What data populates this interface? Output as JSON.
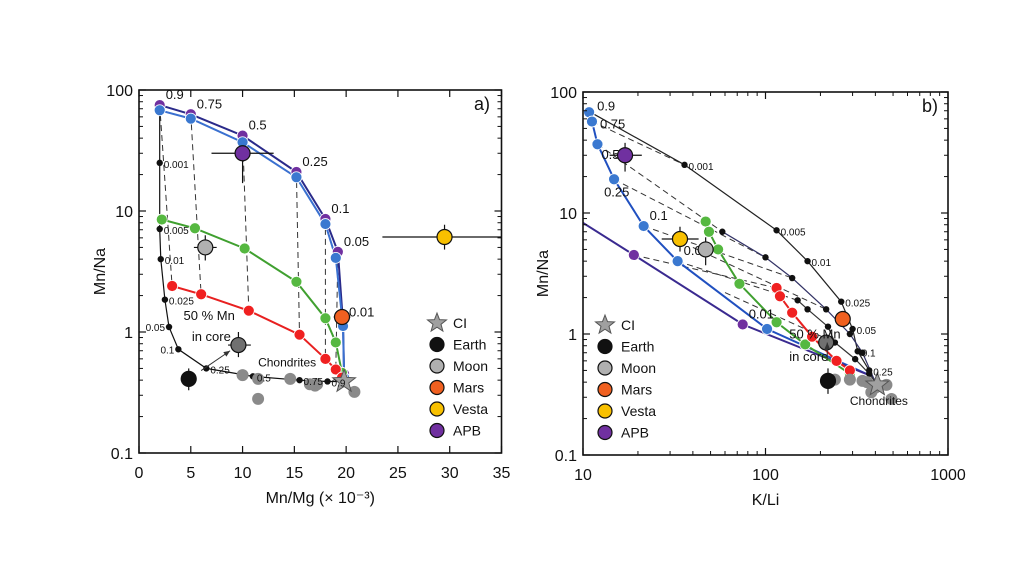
{
  "legend": [
    {
      "label": "CI",
      "marker": "star",
      "color": "#a0a0a0"
    },
    {
      "label": "Earth",
      "marker": "circle",
      "color": "#111111"
    },
    {
      "label": "Moon",
      "marker": "circle",
      "color": "#b0b0b0"
    },
    {
      "label": "Mars",
      "marker": "circle",
      "color": "#f06020"
    },
    {
      "label": "Vesta",
      "marker": "circle",
      "color": "#f8c000"
    },
    {
      "label": "APB",
      "marker": "circle",
      "color": "#7030a0"
    }
  ],
  "chart_data": [
    {
      "type": "scatter",
      "panel_label": "a)",
      "xlabel": "Mn/Mg (× 10⁻³)",
      "ylabel": "Mn/Na",
      "xscale": "linear",
      "yscale": "log",
      "xlim": [
        0,
        35
      ],
      "ylim": [
        0.1,
        100
      ],
      "xticks": [
        "0",
        "5",
        "10",
        "15",
        "20",
        "25",
        "30",
        "35"
      ],
      "yticks": [
        "0.1",
        "1",
        "10",
        "100"
      ],
      "grid": false,
      "legend_position": "bottom-right",
      "models": [
        {
          "color": "#2a2a8a",
          "marker": "#7030a0",
          "x": [
            2,
            5,
            10,
            15.2,
            18,
            19.2,
            19.7,
            19.8
          ],
          "y": [
            75,
            63,
            42,
            21,
            8.6,
            4.6,
            1.2,
            0.45
          ],
          "labels": [
            "0.9",
            "0.75",
            "0.5",
            "0.25",
            "0.1",
            "0.05",
            "0.01",
            null
          ],
          "big": true
        },
        {
          "color": "#3a70d0",
          "marker": "#3a78d0",
          "x": [
            2,
            5,
            10,
            15.2,
            18,
            19,
            19.7,
            19.8
          ],
          "y": [
            68,
            58,
            37,
            19,
            7.8,
            4.1,
            1.12,
            0.42
          ],
          "labels": [
            null,
            null,
            null,
            null,
            null,
            null,
            null,
            null
          ],
          "big": true
        },
        {
          "color": "#40a030",
          "marker": "#55b840",
          "x": [
            2.2,
            5.4,
            10.2,
            15.2,
            18,
            19,
            19.6
          ],
          "y": [
            8.5,
            7.2,
            4.9,
            2.6,
            1.3,
            0.82,
            0.46
          ],
          "labels": [],
          "big": true
        },
        {
          "color": "#e82020",
          "marker": "#f02020",
          "x": [
            3.2,
            6,
            10.6,
            15.5,
            18,
            19,
            19.6
          ],
          "y": [
            2.4,
            2.05,
            1.5,
            0.95,
            0.6,
            0.49,
            0.42
          ],
          "labels": [],
          "big": true
        },
        {
          "color": "#111111",
          "marker": "#111111",
          "x": [
            2,
            2,
            2,
            2.1,
            2.5,
            2.9,
            3.8,
            6.5,
            11,
            15.5,
            18.2,
            19.8
          ],
          "y": [
            70,
            25,
            7.1,
            4,
            1.85,
            1.1,
            0.72,
            0.5,
            0.43,
            0.4,
            0.39,
            0.39
          ],
          "labels": [
            null,
            "0.001",
            "0.005",
            "0.01",
            "0.025",
            "0.05",
            "0.1",
            "0.25",
            "0.5",
            "0.75",
            "0.9",
            null
          ],
          "big": false,
          "skip_marker": [
            0,
            11
          ]
        }
      ],
      "tie_lines": [
        {
          "x": [
            2,
            3.2
          ],
          "y": [
            75,
            2.4
          ]
        },
        {
          "x": [
            5,
            6
          ],
          "y": [
            63,
            2.05
          ]
        },
        {
          "x": [
            10,
            10.6
          ],
          "y": [
            42,
            1.5
          ]
        },
        {
          "x": [
            15.2,
            15.5
          ],
          "y": [
            21,
            0.95
          ]
        },
        {
          "x": [
            18,
            18
          ],
          "y": [
            8.6,
            0.6
          ]
        },
        {
          "x": [
            19.2,
            19
          ],
          "y": [
            4.6,
            0.49
          ]
        }
      ],
      "observations": [
        {
          "body": "Earth",
          "x": 4.8,
          "y": 0.41,
          "xerr": [
            4.8,
            4.8
          ],
          "yerr": [
            0.33,
            0.5
          ],
          "color": "#111111"
        },
        {
          "body": "Moon",
          "x": 6.4,
          "y": 5,
          "xerr": [
            5.3,
            7.5
          ],
          "yerr": [
            3.9,
            6.3
          ],
          "color": "#b0b0b0"
        },
        {
          "body": "Moon",
          "x": 9.6,
          "y": 0.78,
          "xerr": [
            8.6,
            10.8
          ],
          "yerr": [
            0.62,
            1.0
          ],
          "color": "#707070"
        },
        {
          "body": "Mars",
          "x": 19.6,
          "y": 1.33,
          "xerr": [
            18.8,
            20.4
          ],
          "yerr": [
            1.33,
            1.33
          ],
          "color": "#f06020"
        },
        {
          "body": "Vesta",
          "x": 29.5,
          "y": 6.1,
          "xerr": [
            23.5,
            35
          ],
          "yerr": [
            4.8,
            7.7
          ],
          "color": "#f8c000"
        },
        {
          "body": "APB",
          "x": 10,
          "y": 30,
          "xerr": [
            7,
            13
          ],
          "yerr": [
            17,
            30
          ],
          "color": "#7030a0"
        }
      ],
      "ci": {
        "x": 19.8,
        "y": 0.39
      },
      "chondrites": {
        "x": [
          10,
          11.5,
          11.5,
          14.6,
          16.5,
          17.2,
          17,
          20.8
        ],
        "y": [
          0.44,
          0.41,
          0.28,
          0.41,
          0.37,
          0.37,
          0.36,
          0.32
        ]
      },
      "annotations": {
        "core_line1": "50 % Mn",
        "core_line2": "in core",
        "chondrites": "Chondrites"
      }
    },
    {
      "type": "scatter",
      "panel_label": "b)",
      "xlabel": "K/Li",
      "ylabel": "Mn/Na",
      "xscale": "log",
      "yscale": "log",
      "xlim": [
        10,
        1000
      ],
      "ylim": [
        0.1,
        100
      ],
      "xticks": [
        "10",
        "100",
        "1000"
      ],
      "yticks": [
        "0.1",
        "1",
        "10",
        "100"
      ],
      "grid": false,
      "legend_position": "bottom-left",
      "models": [
        {
          "color": "#2050c0",
          "marker": "#3a78d0",
          "x": [
            10.8,
            11.2,
            12,
            14.8,
            21.5,
            33,
            102,
            380
          ],
          "y": [
            68,
            57,
            37,
            19,
            7.8,
            4,
            1.1,
            0.45
          ],
          "labels": [
            "0.9",
            "0.75",
            "0.5",
            "0.25",
            "0.1",
            "0.05",
            null,
            null
          ],
          "big": true,
          "skip_marker": [
            7
          ]
        },
        {
          "color": "#3a2a90",
          "marker": "#7030a0",
          "x": [
            10,
            19,
            75,
            380
          ],
          "y": [
            8.3,
            4.5,
            1.2,
            0.45
          ],
          "labels": [
            null,
            null,
            "0.01",
            null
          ],
          "big": true,
          "skip_marker": [
            0,
            3
          ]
        },
        {
          "color": "#40a030",
          "marker": "#55b840",
          "x": [
            47,
            49,
            55,
            72,
            115,
            165,
            290
          ],
          "y": [
            8.5,
            7,
            5,
            2.6,
            1.25,
            0.82,
            0.47
          ],
          "labels": [],
          "big": true
        },
        {
          "color": "#e82020",
          "marker": "#f02020",
          "x": [
            115,
            120,
            140,
            180,
            245,
            290
          ],
          "y": [
            2.4,
            2.05,
            1.5,
            0.95,
            0.6,
            0.5
          ],
          "labels": [],
          "big": true
        },
        {
          "color": "#222222",
          "marker": "#111111",
          "x": [
            11,
            36,
            115,
            170,
            260,
            300,
            320,
            370,
            400
          ],
          "y": [
            68,
            25,
            7.2,
            4,
            1.85,
            1.1,
            0.72,
            0.5,
            0.4
          ],
          "labels": [
            null,
            "0.001",
            "0.005",
            "0.01",
            "0.025",
            "0.05",
            "0.1",
            "0.25",
            null
          ],
          "big": false,
          "skip_marker": [
            0,
            8
          ]
        },
        {
          "color": "#333366",
          "marker": "#111111",
          "x": [
            58,
            100,
            140,
            215,
            290,
            340,
            400
          ],
          "y": [
            7,
            4.3,
            2.9,
            1.6,
            1.0,
            0.7,
            0.4
          ],
          "labels": [],
          "big": false,
          "skip_marker": [
            6
          ]
        },
        {
          "color": "#333333",
          "marker": "#111111",
          "x": [
            150,
            170,
            220,
            240,
            310,
            370,
            400
          ],
          "y": [
            1.9,
            1.6,
            1.15,
            0.85,
            0.62,
            0.47,
            0.4
          ],
          "labels": [],
          "big": false,
          "skip_marker": [
            6
          ]
        }
      ],
      "tie_lines": [
        {
          "x": [
            11.2,
            36
          ],
          "y": [
            57,
            25
          ]
        },
        {
          "x": [
            12,
            58
          ],
          "y": [
            37,
            7
          ]
        },
        {
          "x": [
            14.8,
            100
          ],
          "y": [
            19,
            4.3
          ]
        },
        {
          "x": [
            21.5,
            140
          ],
          "y": [
            7.8,
            2.9
          ]
        },
        {
          "x": [
            33,
            150
          ],
          "y": [
            4,
            1.9
          ]
        },
        {
          "x": [
            19,
            115
          ],
          "y": [
            4.5,
            2.4
          ]
        },
        {
          "x": [
            40,
            215
          ],
          "y": [
            5.2,
            1.6
          ]
        },
        {
          "x": [
            60,
            240
          ],
          "y": [
            2.2,
            0.85
          ]
        }
      ],
      "observations": [
        {
          "body": "Earth",
          "x": 220,
          "y": 0.41,
          "xerr": [
            220,
            220
          ],
          "yerr": [
            0.32,
            0.52
          ],
          "color": "#111111"
        },
        {
          "body": "Moon",
          "x": 47,
          "y": 5,
          "xerr": [
            47,
            47
          ],
          "yerr": [
            3.7,
            6.3
          ],
          "color": "#b0b0b0"
        },
        {
          "body": "Moon",
          "x": 215,
          "y": 0.85,
          "xerr": [
            215,
            215
          ],
          "yerr": [
            0.85,
            0.85
          ],
          "color": "#707070"
        },
        {
          "body": "Mars",
          "x": 265,
          "y": 1.33,
          "xerr": [
            265,
            265
          ],
          "yerr": [
            1.15,
            1.55
          ],
          "color": "#f06020"
        },
        {
          "body": "Vesta",
          "x": 34,
          "y": 6.1,
          "xerr": [
            27,
            43
          ],
          "yerr": [
            4.8,
            7.7
          ],
          "color": "#f8c000"
        },
        {
          "body": "APB",
          "x": 17,
          "y": 30,
          "xerr": [
            14,
            21
          ],
          "yerr": [
            22,
            38
          ],
          "color": "#7030a0"
        }
      ],
      "ci": {
        "x": 410,
        "y": 0.38
      },
      "chondrites": {
        "x": [
          240,
          290,
          360,
          380,
          460,
          490,
          400,
          340
        ],
        "y": [
          0.42,
          0.42,
          0.4,
          0.33,
          0.38,
          0.29,
          0.36,
          0.41
        ]
      },
      "annotations": {
        "core_line1": "50 % Mn",
        "core_line2": "in core",
        "chondrites": "Chondrites"
      }
    }
  ]
}
